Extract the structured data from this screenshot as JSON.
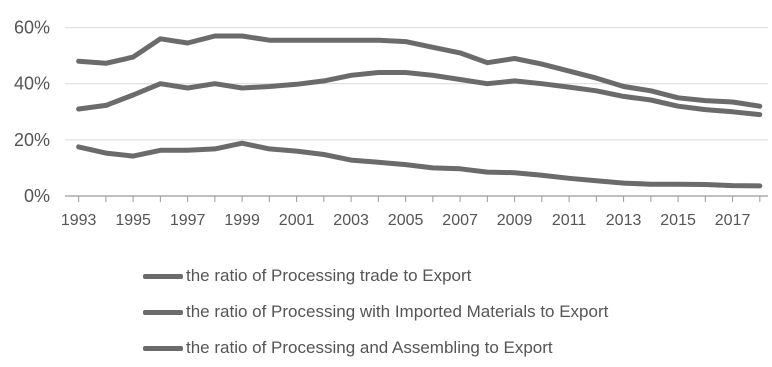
{
  "chart_data": {
    "type": "line",
    "title": "",
    "xlabel": "",
    "ylabel": "",
    "x": [
      1993,
      1994,
      1995,
      1996,
      1997,
      1998,
      1999,
      2000,
      2001,
      2002,
      2003,
      2004,
      2005,
      2006,
      2007,
      2008,
      2009,
      2010,
      2011,
      2012,
      2013,
      2014,
      2015,
      2016,
      2017,
      2018
    ],
    "x_tick_labels": [
      "1993",
      "1995",
      "1997",
      "1999",
      "2001",
      "2003",
      "2005",
      "2007",
      "2009",
      "2011",
      "2013",
      "2015",
      "2017"
    ],
    "x_tick_values": [
      1993,
      1995,
      1997,
      1999,
      2001,
      2003,
      2005,
      2007,
      2009,
      2011,
      2013,
      2015,
      2017
    ],
    "y_tick_labels": [
      "0%",
      "20%",
      "40%",
      "60%"
    ],
    "y_tick_values": [
      0,
      20,
      40,
      60
    ],
    "xlim": [
      1992.5,
      2018.3
    ],
    "ylim": [
      0,
      62
    ],
    "grid": true,
    "legend_position": "bottom",
    "line_color": "#6b6b6b",
    "series": [
      {
        "name": "the ratio of Processing trade to Export",
        "values": [
          48,
          47.3,
          49.5,
          56,
          54.5,
          57,
          57,
          55.5,
          55.5,
          55.5,
          55.5,
          55.5,
          55,
          53,
          51,
          47.5,
          49,
          47,
          44.5,
          42,
          39,
          37.5,
          35,
          34,
          33.5,
          32
        ]
      },
      {
        "name": "the ratio of Processing with Imported Materials to Export",
        "values": [
          31,
          32.3,
          36,
          40,
          38.5,
          40,
          38.5,
          39,
          39.8,
          41,
          43,
          44,
          44,
          43,
          41.5,
          40,
          41,
          40,
          38.8,
          37.5,
          35.5,
          34.2,
          32,
          30.8,
          30,
          29
        ]
      },
      {
        "name": "the ratio of Processing and Assembling to Export",
        "values": [
          17.5,
          15.3,
          14.2,
          16.3,
          16.3,
          16.8,
          18.8,
          16.8,
          16,
          14.8,
          12.8,
          12,
          11.2,
          10,
          9.7,
          8.5,
          8.3,
          7.4,
          6.3,
          5.4,
          4.6,
          4.2,
          4.2,
          4.1,
          3.7,
          3.6
        ]
      }
    ]
  }
}
